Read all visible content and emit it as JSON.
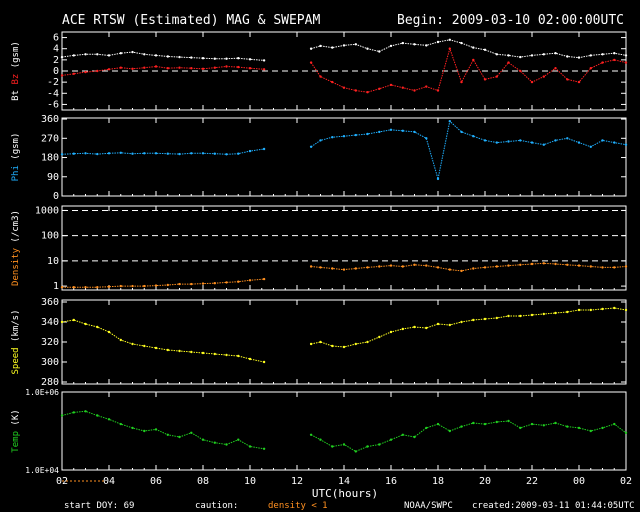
{
  "header": {
    "title": "ACE RTSW (Estimated) MAG & SWEPAM",
    "begin": "Begin: 2009-03-10 02:00:00UTC"
  },
  "footer": {
    "start_doy": "start DOY:  69",
    "caution": "caution:",
    "density_note": "density < 1",
    "source": "NOAA/SWPC",
    "created": "created:2009-03-11 01:44:05UTC"
  },
  "colors": {
    "bt": "#ffffff",
    "bz": "#ff2020",
    "phi": "#20b0ff",
    "density": "#ff9020",
    "speed": "#ffff20",
    "temp": "#20d020",
    "caution": "#ff9020"
  },
  "chart_data": {
    "type": "scatter",
    "xlabel": "UTC(hours)",
    "x_ticks": [
      "02",
      "04",
      "06",
      "08",
      "10",
      "12",
      "14",
      "16",
      "18",
      "20",
      "22",
      "00",
      "02"
    ],
    "xlim": [
      0,
      24
    ],
    "panels": [
      {
        "id": "mag",
        "ylabel_parts": [
          "Bt",
          "Bz",
          "(gsm)"
        ],
        "ylim": [
          -7,
          7
        ],
        "y_ticks": [
          "6",
          "4",
          "2",
          "0",
          "-2",
          "-4",
          "-6"
        ],
        "y_tick_values": [
          6,
          4,
          2,
          0,
          -2,
          -4,
          -6
        ],
        "dashed_lines": [
          0
        ],
        "series": [
          {
            "key": "bt",
            "x": [
              0.0,
              0.5,
              1.0,
              1.5,
              2.0,
              2.5,
              3.0,
              3.5,
              4.0,
              4.5,
              5.0,
              5.5,
              6.0,
              6.5,
              7.0,
              7.5,
              8.0,
              8.6,
              10.6,
              11.0,
              11.5,
              12.0,
              12.5,
              13.0,
              13.5,
              14.0,
              14.5,
              15.0,
              15.5,
              16.0,
              16.5,
              17.0,
              17.5,
              18.0,
              18.5,
              19.0,
              19.5,
              20.0,
              20.5,
              21.0,
              21.5,
              22.0,
              22.5,
              23.0,
              23.5,
              24.0
            ],
            "y": [
              2.5,
              2.8,
              3.0,
              3.0,
              2.8,
              3.2,
              3.4,
              3.0,
              2.8,
              2.6,
              2.5,
              2.4,
              2.3,
              2.2,
              2.2,
              2.3,
              2.1,
              1.9,
              4.0,
              4.5,
              4.2,
              4.6,
              4.8,
              4.0,
              3.5,
              4.5,
              5.0,
              4.8,
              4.6,
              5.2,
              5.6,
              5.0,
              4.2,
              3.8,
              3.0,
              2.8,
              2.5,
              2.8,
              3.0,
              3.2,
              2.6,
              2.4,
              2.8,
              3.0,
              3.2,
              2.8
            ]
          },
          {
            "key": "bz",
            "x": [
              0.0,
              0.5,
              1.0,
              1.5,
              2.0,
              2.5,
              3.0,
              3.5,
              4.0,
              4.5,
              5.0,
              5.5,
              6.0,
              6.5,
              7.0,
              7.5,
              8.0,
              8.6,
              10.6,
              11.0,
              11.5,
              12.0,
              12.5,
              13.0,
              13.5,
              14.0,
              14.5,
              15.0,
              15.5,
              16.0,
              16.5,
              17.0,
              17.5,
              18.0,
              18.5,
              19.0,
              19.5,
              20.0,
              20.5,
              21.0,
              21.5,
              22.0,
              22.5,
              23.0,
              23.5,
              24.0
            ],
            "y": [
              -0.8,
              -0.5,
              -0.2,
              0.0,
              0.3,
              0.6,
              0.4,
              0.6,
              0.8,
              0.5,
              0.6,
              0.5,
              0.4,
              0.6,
              0.8,
              0.7,
              0.5,
              0.3,
              1.5,
              -1.0,
              -2.0,
              -3.0,
              -3.5,
              -3.8,
              -3.2,
              -2.5,
              -3.0,
              -3.5,
              -2.8,
              -3.5,
              4.0,
              -2.0,
              2.0,
              -1.5,
              -1.0,
              1.5,
              0.0,
              -2.0,
              -1.0,
              0.5,
              -1.5,
              -2.0,
              0.5,
              1.5,
              2.0,
              1.5
            ]
          }
        ]
      },
      {
        "id": "phi",
        "ylabel_parts": [
          "Phi",
          "(gsm)"
        ],
        "ylim": [
          0,
          365
        ],
        "y_ticks": [
          "360",
          "270",
          "180",
          "90",
          "0"
        ],
        "y_tick_values": [
          360,
          270,
          180,
          90,
          0
        ],
        "dashed_lines": [],
        "series": [
          {
            "key": "phi",
            "x": [
              0.0,
              0.5,
              1.0,
              1.5,
              2.0,
              2.5,
              3.0,
              3.5,
              4.0,
              4.5,
              5.0,
              5.5,
              6.0,
              6.5,
              7.0,
              7.5,
              8.0,
              8.6,
              10.6,
              11.0,
              11.5,
              12.0,
              12.5,
              13.0,
              13.5,
              14.0,
              14.5,
              15.0,
              15.5,
              16.0,
              16.5,
              17.0,
              17.5,
              18.0,
              18.5,
              19.0,
              19.5,
              20.0,
              20.5,
              21.0,
              21.5,
              22.0,
              22.5,
              23.0,
              23.5,
              24.0
            ],
            "y": [
              195,
              198,
              200,
              196,
              200,
              202,
              198,
              200,
              200,
              198,
              196,
              200,
              200,
              198,
              195,
              198,
              210,
              220,
              230,
              260,
              275,
              280,
              285,
              290,
              300,
              310,
              305,
              300,
              270,
              80,
              350,
              300,
              280,
              260,
              250,
              255,
              260,
              250,
              240,
              260,
              270,
              250,
              230,
              260,
              250,
              240
            ]
          }
        ]
      },
      {
        "id": "density",
        "ylabel_parts": [
          "Density",
          "(/cm3)"
        ],
        "log": true,
        "ylim": [
          0.7,
          1500
        ],
        "y_ticks": [
          "1000",
          "100",
          "10",
          "1"
        ],
        "y_tick_values": [
          1000,
          100,
          10,
          1
        ],
        "dashed_lines": [
          1000,
          100,
          10
        ],
        "series": [
          {
            "key": "density",
            "x": [
              0.0,
              0.5,
              1.0,
              1.5,
              2.0,
              2.5,
              3.0,
              3.5,
              4.0,
              4.5,
              5.0,
              5.5,
              6.0,
              6.5,
              7.0,
              7.5,
              8.0,
              8.6,
              10.6,
              11.0,
              11.5,
              12.0,
              12.5,
              13.0,
              13.5,
              14.0,
              14.5,
              15.0,
              15.5,
              16.0,
              16.5,
              17.0,
              17.5,
              18.0,
              18.5,
              19.0,
              19.5,
              20.0,
              20.5,
              21.0,
              21.5,
              22.0,
              22.5,
              23.0,
              23.5,
              24.0
            ],
            "y": [
              0.9,
              0.9,
              0.9,
              0.9,
              0.95,
              1.0,
              1.0,
              1.0,
              1.05,
              1.1,
              1.2,
              1.2,
              1.25,
              1.3,
              1.4,
              1.5,
              1.7,
              1.9,
              6.0,
              5.5,
              5.0,
              4.5,
              5.0,
              5.5,
              6.0,
              6.5,
              6.0,
              7.0,
              6.5,
              5.5,
              4.5,
              4.0,
              5.0,
              5.5,
              6.0,
              6.5,
              7.0,
              7.5,
              8.0,
              7.5,
              7.0,
              6.5,
              6.0,
              5.5,
              5.5,
              6.0
            ]
          }
        ]
      },
      {
        "id": "speed",
        "ylabel_parts": [
          "Speed",
          "(km/s)"
        ],
        "ylim": [
          278,
          362
        ],
        "y_ticks": [
          "360",
          "340",
          "320",
          "300",
          "280"
        ],
        "y_tick_values": [
          360,
          340,
          320,
          300,
          280
        ],
        "dashed_lines": [],
        "series": [
          {
            "key": "speed",
            "x": [
              0.0,
              0.5,
              1.0,
              1.5,
              2.0,
              2.5,
              3.0,
              3.5,
              4.0,
              4.5,
              5.0,
              5.5,
              6.0,
              6.5,
              7.0,
              7.5,
              8.0,
              8.6,
              10.6,
              11.0,
              11.5,
              12.0,
              12.5,
              13.0,
              13.5,
              14.0,
              14.5,
              15.0,
              15.5,
              16.0,
              16.5,
              17.0,
              17.5,
              18.0,
              18.5,
              19.0,
              19.5,
              20.0,
              20.5,
              21.0,
              21.5,
              22.0,
              22.5,
              23.0,
              23.5,
              24.0
            ],
            "y": [
              340,
              342,
              338,
              335,
              330,
              322,
              318,
              316,
              314,
              312,
              311,
              310,
              309,
              308,
              307,
              306,
              303,
              300,
              318,
              320,
              316,
              315,
              318,
              320,
              325,
              330,
              333,
              335,
              334,
              338,
              337,
              340,
              342,
              343,
              344,
              346,
              346,
              347,
              348,
              349,
              350,
              352,
              352,
              353,
              354,
              352
            ]
          }
        ]
      },
      {
        "id": "temp",
        "ylabel_parts": [
          "Temp",
          "(K)"
        ],
        "log": true,
        "ylim": [
          10000,
          1000000
        ],
        "y_ticks": [
          "1.0E+06",
          "1.0E+04"
        ],
        "y_tick_values": [
          1000000,
          10000
        ],
        "dashed_lines": [],
        "series": [
          {
            "key": "temp",
            "x": [
              0.0,
              0.5,
              1.0,
              1.5,
              2.0,
              2.5,
              3.0,
              3.5,
              4.0,
              4.5,
              5.0,
              5.5,
              6.0,
              6.5,
              7.0,
              7.5,
              8.0,
              8.6,
              10.6,
              11.0,
              11.5,
              12.0,
              12.5,
              13.0,
              13.5,
              14.0,
              14.5,
              15.0,
              15.5,
              16.0,
              16.5,
              17.0,
              17.5,
              18.0,
              18.5,
              19.0,
              19.5,
              20.0,
              20.5,
              21.0,
              21.5,
              22.0,
              22.5,
              23.0,
              23.5,
              24.0
            ],
            "y": [
              250000,
              300000,
              320000,
              250000,
              200000,
              150000,
              120000,
              100000,
              110000,
              80000,
              70000,
              90000,
              60000,
              50000,
              45000,
              60000,
              40000,
              35000,
              80000,
              60000,
              40000,
              45000,
              30000,
              40000,
              45000,
              60000,
              80000,
              70000,
              120000,
              150000,
              100000,
              130000,
              160000,
              150000,
              170000,
              180000,
              120000,
              150000,
              140000,
              160000,
              130000,
              120000,
              100000,
              120000,
              150000,
              90000
            ]
          }
        ]
      }
    ]
  }
}
